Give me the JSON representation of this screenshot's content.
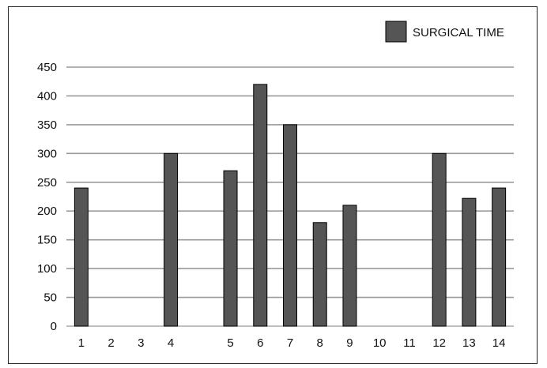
{
  "chart_data": {
    "type": "bar",
    "title": "",
    "xlabel": "",
    "ylabel": "",
    "legend_position": "top-right",
    "grid": true,
    "ylim": [
      0,
      450
    ],
    "yticks": [
      0,
      50,
      100,
      150,
      200,
      250,
      300,
      350,
      400,
      450
    ],
    "categories": [
      "1",
      "2",
      "3",
      "4",
      "",
      "5",
      "6",
      "7",
      "8",
      "9",
      "10",
      "11",
      "12",
      "13",
      "14"
    ],
    "series": [
      {
        "name": "SURGICAL TIME",
        "color": "#555555",
        "values": [
          240,
          null,
          null,
          300,
          null,
          270,
          420,
          350,
          180,
          210,
          null,
          null,
          300,
          222,
          240
        ]
      }
    ]
  }
}
